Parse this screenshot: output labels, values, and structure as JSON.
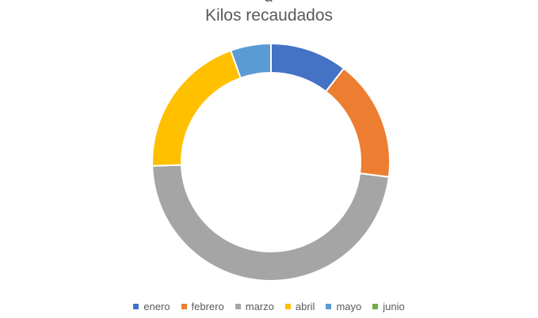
{
  "chart_data": {
    "type": "pie",
    "subtype": "doughnut",
    "title": "Kilos recaudados",
    "categories": [
      "enero",
      "febrero",
      "marzo",
      "abril",
      "mayo",
      "junio"
    ],
    "values": [
      10.5,
      16.5,
      47.5,
      20.0,
      5.5,
      0
    ],
    "unit": "percent_of_total",
    "colors": [
      "#4472C4",
      "#ED7D31",
      "#A5A5A5",
      "#FFC000",
      "#5B9BD5",
      "#70AD47"
    ],
    "legend_position": "bottom"
  }
}
